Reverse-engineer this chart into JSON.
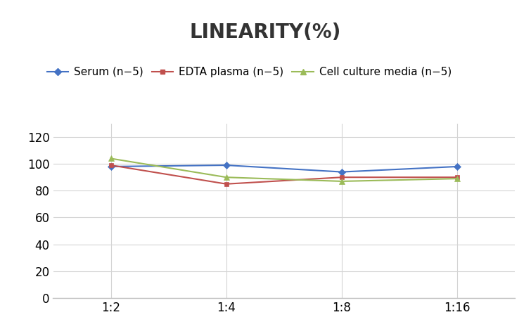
{
  "title": "LINEARITY(%)",
  "x_labels": [
    "1:2",
    "1:4",
    "1:8",
    "1:16"
  ],
  "x_positions": [
    0,
    1,
    2,
    3
  ],
  "series": [
    {
      "label": "Serum (n−5)",
      "values": [
        98,
        99,
        94,
        98
      ],
      "color": "#4472C4",
      "marker": "D",
      "markersize": 5
    },
    {
      "label": "EDTA plasma (n−5)",
      "values": [
        99,
        85,
        90,
        90
      ],
      "color": "#C0504D",
      "marker": "s",
      "markersize": 5
    },
    {
      "label": "Cell culture media (n−5)",
      "values": [
        104,
        90,
        87,
        89
      ],
      "color": "#9BBB59",
      "marker": "^",
      "markersize": 6
    }
  ],
  "ylim": [
    0,
    130
  ],
  "yticks": [
    0,
    20,
    40,
    60,
    80,
    100,
    120
  ],
  "title_fontsize": 20,
  "legend_fontsize": 11,
  "tick_fontsize": 12,
  "background_color": "#ffffff",
  "grid_color": "#d4d4d4",
  "spine_color": "#c0c0c0"
}
